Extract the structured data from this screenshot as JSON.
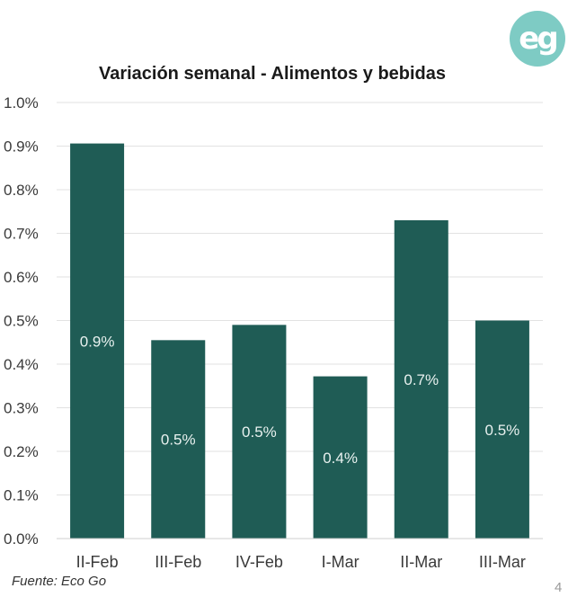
{
  "chart_data": {
    "type": "bar",
    "title": "Variación semanal - Alimentos y bebidas",
    "categories": [
      "II-Feb",
      "III-Feb",
      "IV-Feb",
      "I-Mar",
      "II-Mar",
      "III-Mar"
    ],
    "values": [
      0.906,
      0.455,
      0.49,
      0.372,
      0.73,
      0.5
    ],
    "data_labels": [
      "0.9%",
      "0.5%",
      "0.5%",
      "0.4%",
      "0.7%",
      "0.5%"
    ],
    "ylim": [
      0,
      1.0
    ],
    "yticks": [
      0.0,
      0.1,
      0.2,
      0.3,
      0.4,
      0.5,
      0.6,
      0.7,
      0.8,
      0.9,
      1.0
    ],
    "ytick_labels": [
      "0.0%",
      "0.1%",
      "0.2%",
      "0.3%",
      "0.4%",
      "0.5%",
      "0.6%",
      "0.7%",
      "0.8%",
      "0.9%",
      "1.0%"
    ],
    "xlabel": "",
    "ylabel": "",
    "grid": true,
    "legend": "none"
  },
  "logo": {
    "text": "eg",
    "icon": "eco-go-logo-icon"
  },
  "source_text": "Fuente: Eco Go",
  "page_number": "4",
  "colors": {
    "bar": "#1f5c55",
    "bar_label": "#e8f1ef",
    "grid": "#e2e2e2",
    "axis_text": "#3a3a3a",
    "title": "#1a1a1a",
    "logo_bg": "#7ecbc4",
    "logo_text": "#ffffff"
  }
}
